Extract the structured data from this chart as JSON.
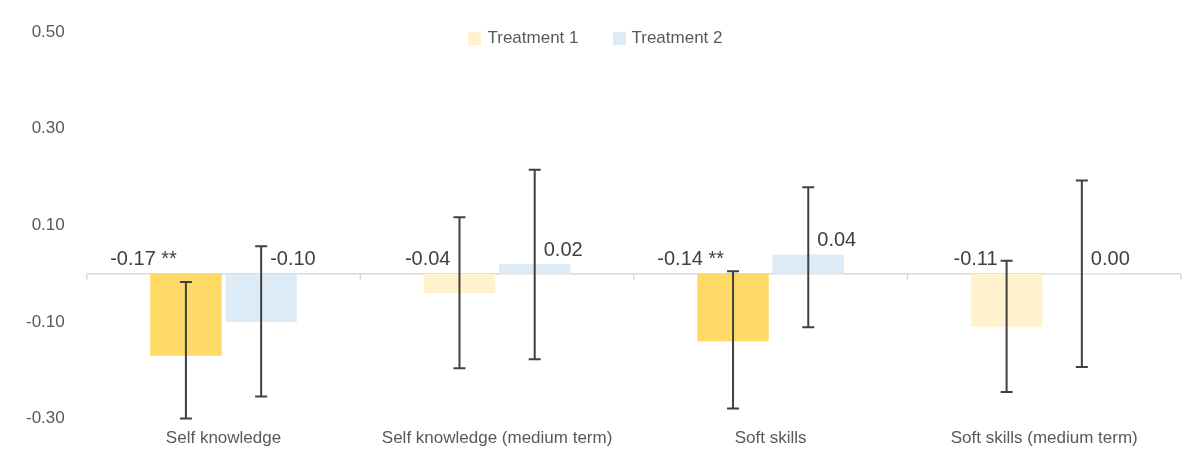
{
  "chart_data": {
    "type": "bar",
    "categories": [
      "Self knowledge",
      "Self knowledge (medium term)",
      "Soft skills",
      "Soft skills (medium term)"
    ],
    "series": [
      {
        "name": "Treatment 1",
        "color": "#fff2cc",
        "colors": [
          "#ffd966",
          "#fff2cc",
          "#ffd966",
          "#fff2cc"
        ],
        "values": [
          -0.17,
          -0.04,
          -0.14,
          -0.11
        ],
        "value_labels": [
          "-0.17 **",
          "-0.04",
          "-0.14 **",
          "-0.11"
        ],
        "errors": [
          [
            -0.3,
            -0.017
          ],
          [
            -0.196,
            0.117
          ],
          [
            -0.279,
            0.005
          ],
          [
            -0.245,
            0.027
          ]
        ]
      },
      {
        "name": "Treatment 2",
        "color": "#ddebf7",
        "values": [
          -0.1,
          0.02,
          0.04,
          0.0
        ],
        "value_labels": [
          "-0.10",
          "0.02",
          "0.04",
          "0.00"
        ],
        "errors": [
          [
            -0.254,
            0.057
          ],
          [
            -0.177,
            0.215
          ],
          [
            -0.111,
            0.179
          ],
          [
            -0.193,
            0.193
          ]
        ]
      }
    ],
    "ylim": [
      -0.3,
      0.5
    ],
    "yticks": [
      {
        "value": 0.5,
        "label": "0.50"
      },
      {
        "value": 0.3,
        "label": "0.30"
      },
      {
        "value": 0.1,
        "label": "0.10"
      },
      {
        "value": -0.1,
        "label": "-0.10"
      },
      {
        "value": -0.3,
        "label": "-0.30"
      }
    ],
    "grid": false,
    "legend": "top"
  }
}
